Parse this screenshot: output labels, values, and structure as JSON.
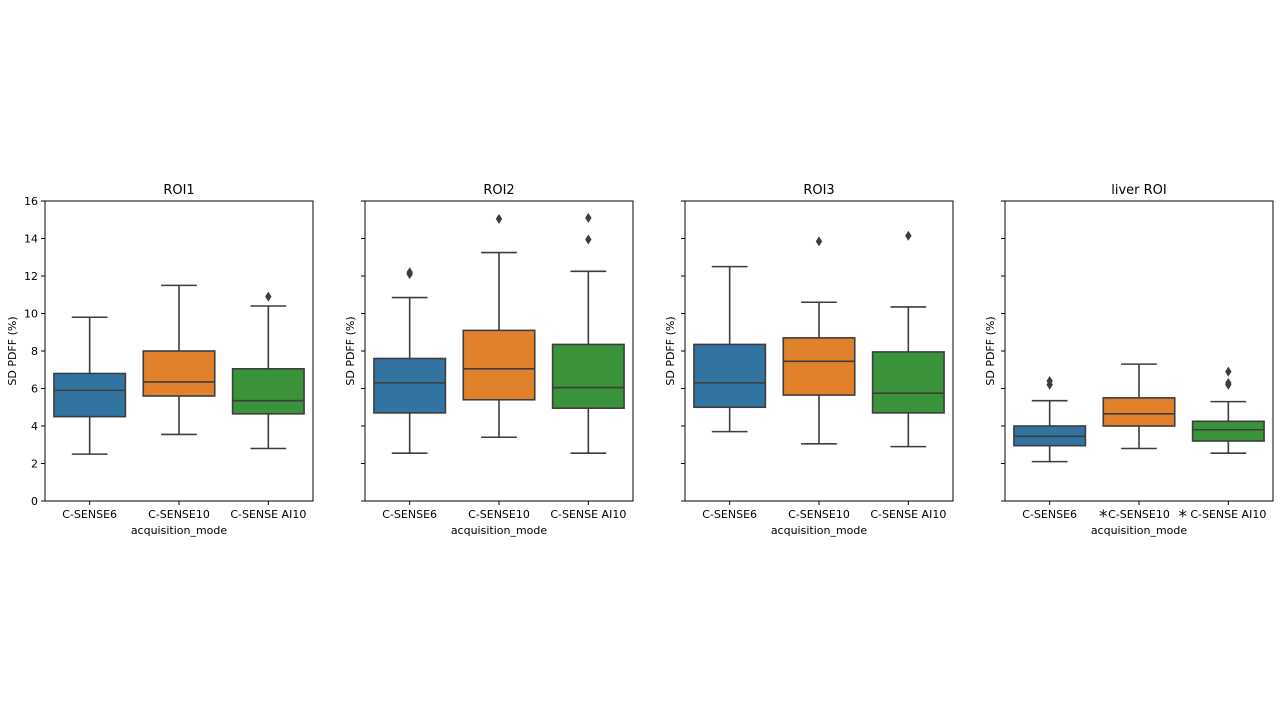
{
  "chart_data": [
    {
      "type": "box",
      "title": "ROI1",
      "xlabel": "acquisition_mode",
      "ylabel": "SD PDFF (%)",
      "ylim": [
        0,
        16
      ],
      "yticks": [
        "0",
        "2",
        "4",
        "6",
        "8",
        "10",
        "12",
        "14",
        "16"
      ],
      "yticklabels_visible": true,
      "categories": [
        "C-SENSE6",
        "C-SENSE10",
        "C-SENSE AI10"
      ],
      "boxes": [
        {
          "name": "C-SENSE6",
          "whislo": 2.5,
          "q1": 4.5,
          "med": 5.9,
          "q3": 6.8,
          "whishi": 9.8,
          "fliers": [],
          "color": "#3274a1",
          "marker": ""
        },
        {
          "name": "C-SENSE10",
          "whislo": 3.55,
          "q1": 5.6,
          "med": 6.35,
          "q3": 8.0,
          "whishi": 11.5,
          "fliers": [],
          "color": "#e1812c",
          "marker": ""
        },
        {
          "name": "C-SENSE AI10",
          "whislo": 2.8,
          "q1": 4.65,
          "med": 5.35,
          "q3": 7.05,
          "whishi": 10.4,
          "fliers": [
            10.9
          ],
          "color": "#3a923a",
          "marker": ""
        }
      ]
    },
    {
      "type": "box",
      "title": "ROI2",
      "xlabel": "acquisition_mode",
      "ylabel": "SD PDFF (%)",
      "ylim": [
        0,
        16
      ],
      "yticks": [
        "0",
        "2",
        "4",
        "6",
        "8",
        "10",
        "12",
        "14",
        "16"
      ],
      "yticklabels_visible": false,
      "categories": [
        "C-SENSE6",
        "C-SENSE10",
        "C-SENSE AI10"
      ],
      "boxes": [
        {
          "name": "C-SENSE6",
          "whislo": 2.55,
          "q1": 4.7,
          "med": 6.3,
          "q3": 7.6,
          "whishi": 10.85,
          "fliers": [
            12.1,
            12.2
          ],
          "color": "#3274a1",
          "marker": ""
        },
        {
          "name": "C-SENSE10",
          "whislo": 3.4,
          "q1": 5.4,
          "med": 7.05,
          "q3": 9.1,
          "whishi": 13.25,
          "fliers": [
            15.05
          ],
          "color": "#e1812c",
          "marker": ""
        },
        {
          "name": "C-SENSE AI10",
          "whislo": 2.55,
          "q1": 4.95,
          "med": 6.05,
          "q3": 8.35,
          "whishi": 12.25,
          "fliers": [
            13.95,
            15.1
          ],
          "color": "#3a923a",
          "marker": ""
        }
      ]
    },
    {
      "type": "box",
      "title": "ROI3",
      "xlabel": "acquisition_mode",
      "ylabel": "SD PDFF (%)",
      "ylim": [
        0,
        16
      ],
      "yticks": [
        "0",
        "2",
        "4",
        "6",
        "8",
        "10",
        "12",
        "14",
        "16"
      ],
      "yticklabels_visible": false,
      "categories": [
        "C-SENSE6",
        "C-SENSE10",
        "C-SENSE AI10"
      ],
      "boxes": [
        {
          "name": "C-SENSE6",
          "whislo": 3.7,
          "q1": 5.0,
          "med": 6.3,
          "q3": 8.35,
          "whishi": 12.5,
          "fliers": [],
          "color": "#3274a1",
          "marker": ""
        },
        {
          "name": "C-SENSE10",
          "whislo": 3.05,
          "q1": 5.65,
          "med": 7.45,
          "q3": 8.7,
          "whishi": 10.6,
          "fliers": [
            13.85
          ],
          "color": "#e1812c",
          "marker": ""
        },
        {
          "name": "C-SENSE AI10",
          "whislo": 2.9,
          "q1": 4.7,
          "med": 5.75,
          "q3": 7.95,
          "whishi": 10.35,
          "fliers": [
            14.15
          ],
          "color": "#3a923a",
          "marker": ""
        }
      ]
    },
    {
      "type": "box",
      "title": "liver ROI",
      "xlabel": "acquisition_mode",
      "ylabel": "SD PDFF (%)",
      "ylim": [
        0,
        16
      ],
      "yticks": [
        "0",
        "2",
        "4",
        "6",
        "8",
        "10",
        "12",
        "14",
        "16"
      ],
      "yticklabels_visible": false,
      "categories": [
        "C-SENSE6",
        "C-SENSE10",
        "C-SENSE AI10"
      ],
      "boxes": [
        {
          "name": "C-SENSE6",
          "whislo": 2.1,
          "q1": 2.95,
          "med": 3.45,
          "q3": 4.0,
          "whishi": 5.35,
          "fliers": [
            6.2,
            6.4
          ],
          "color": "#3274a1",
          "marker": ""
        },
        {
          "name": "C-SENSE10",
          "whislo": 2.8,
          "q1": 4.0,
          "med": 4.65,
          "q3": 5.5,
          "whishi": 7.3,
          "fliers": [],
          "color": "#e1812c",
          "marker": "*"
        },
        {
          "name": "C-SENSE AI10",
          "whislo": 2.55,
          "q1": 3.2,
          "med": 3.8,
          "q3": 4.25,
          "whishi": 5.3,
          "fliers": [
            6.2,
            6.3,
            6.9
          ],
          "color": "#3a923a",
          "marker": "*"
        }
      ]
    }
  ]
}
